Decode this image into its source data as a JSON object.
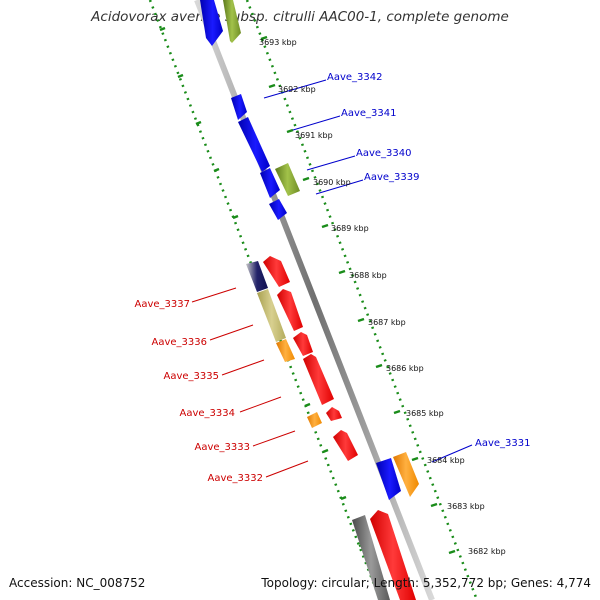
{
  "header": {
    "title": "Acidovorax avenae subsp. citrulli AAC00-1, complete genome"
  },
  "footer": {
    "accession": "Accession: NC_008752",
    "topology": "Topology: circular; Length: 5,352,772 bp; Genes: 4,774"
  },
  "colors": {
    "forward_label": "#0000cc",
    "reverse_label": "#cc0000",
    "backbone": "#8c8c8c",
    "ruler": "#1a8c1a"
  },
  "ruler_labels": [
    {
      "text": "3693 kbp"
    },
    {
      "text": "3692 kbp"
    },
    {
      "text": "3691 kbp"
    },
    {
      "text": "3690 kbp"
    },
    {
      "text": "3689 kbp"
    },
    {
      "text": "3688 kbp"
    },
    {
      "text": "3687 kbp"
    },
    {
      "text": "3686 kbp"
    },
    {
      "text": "3685 kbp"
    },
    {
      "text": "3684 kbp"
    },
    {
      "text": "3683 kbp"
    },
    {
      "text": "3682 kbp"
    }
  ],
  "forward_genes": [
    {
      "name": "Aave_3342"
    },
    {
      "name": "Aave_3341"
    },
    {
      "name": "Aave_3340"
    },
    {
      "name": "Aave_3339"
    },
    {
      "name": "Aave_3331"
    }
  ],
  "reverse_genes": [
    {
      "name": "Aave_3337"
    },
    {
      "name": "Aave_3336"
    },
    {
      "name": "Aave_3335"
    },
    {
      "name": "Aave_3334"
    },
    {
      "name": "Aave_3333"
    },
    {
      "name": "Aave_3332"
    }
  ]
}
